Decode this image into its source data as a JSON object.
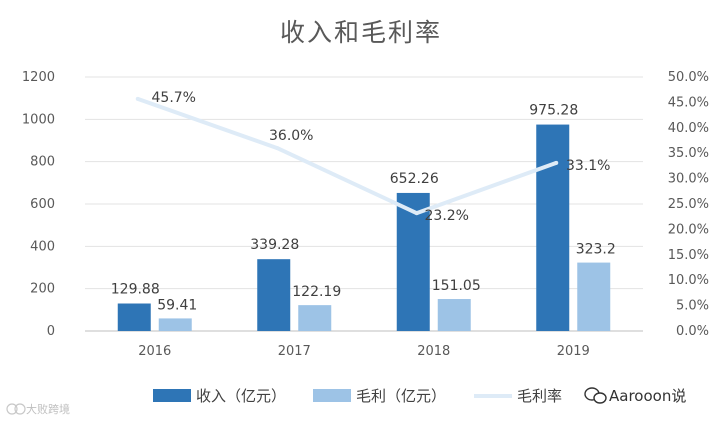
{
  "chart_data": {
    "type": "bar",
    "title": "收入和毛利率",
    "categories": [
      "2016",
      "2017",
      "2018",
      "2019"
    ],
    "series": [
      {
        "name": "收入（亿元）",
        "values": [
          129.88,
          339.28,
          652.26,
          975.28
        ],
        "color": "#2e75b6",
        "kind": "bar",
        "axis": "left"
      },
      {
        "name": "毛利（亿元）",
        "values": [
          59.41,
          122.19,
          151.05,
          323.2
        ],
        "color": "#9dc3e6",
        "kind": "bar",
        "axis": "left"
      },
      {
        "name": "毛利率",
        "values": [
          45.7,
          36.0,
          23.2,
          33.1
        ],
        "color": "#deebf7",
        "kind": "line",
        "axis": "right"
      }
    ],
    "data_labels": {
      "revenue": [
        "129.88",
        "339.28",
        "652.26",
        "975.28"
      ],
      "gross_profit": [
        "59.41",
        "122.19",
        "151.05",
        "323.2"
      ],
      "margin": [
        "45.7%",
        "36.0%",
        "23.2%",
        "33.1%"
      ]
    },
    "y_left": {
      "min": 0,
      "max": 1200,
      "ticks": [
        "0",
        "200",
        "400",
        "600",
        "800",
        "1000",
        "1200"
      ]
    },
    "y_right": {
      "min": 0,
      "max": 50,
      "ticks": [
        "0.0%",
        "5.0%",
        "10.0%",
        "15.0%",
        "20.0%",
        "25.0%",
        "30.0%",
        "35.0%",
        "40.0%",
        "45.0%",
        "50.0%"
      ]
    },
    "grid": true,
    "legend_position": "bottom"
  },
  "watermark": {
    "brand": "Aarooon说",
    "corner_text": "大败跨境"
  }
}
